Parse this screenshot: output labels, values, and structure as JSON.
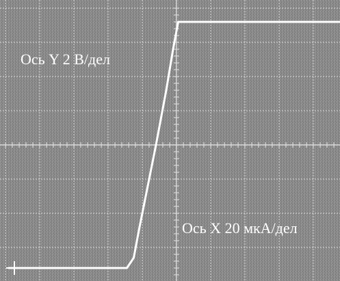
{
  "chart_data": {
    "type": "line",
    "labels": {
      "y_axis": "Ось Y 2 В/дел",
      "x_axis": "Ось X 20 мкА/дел"
    },
    "grid": true,
    "x_divisions": 10,
    "y_divisions": 8,
    "x_range": [
      -5,
      5
    ],
    "y_range": [
      -4,
      4
    ],
    "series": [
      {
        "points": [
          [
            -4.9,
            -3.6
          ],
          [
            -1.45,
            -3.6
          ],
          [
            -1.25,
            -3.3
          ],
          [
            -1.1,
            -2.5
          ],
          [
            -0.9,
            -1.5
          ],
          [
            -0.6,
            0.0
          ],
          [
            -0.3,
            1.6
          ],
          [
            -0.1,
            2.8
          ],
          [
            0.05,
            3.6
          ],
          [
            5.0,
            3.6
          ]
        ]
      }
    ],
    "colors": {
      "screen": "#8a8a8a",
      "grid": "#d8d8d8",
      "trace": "#ffffff",
      "text": "#ffffff"
    }
  }
}
